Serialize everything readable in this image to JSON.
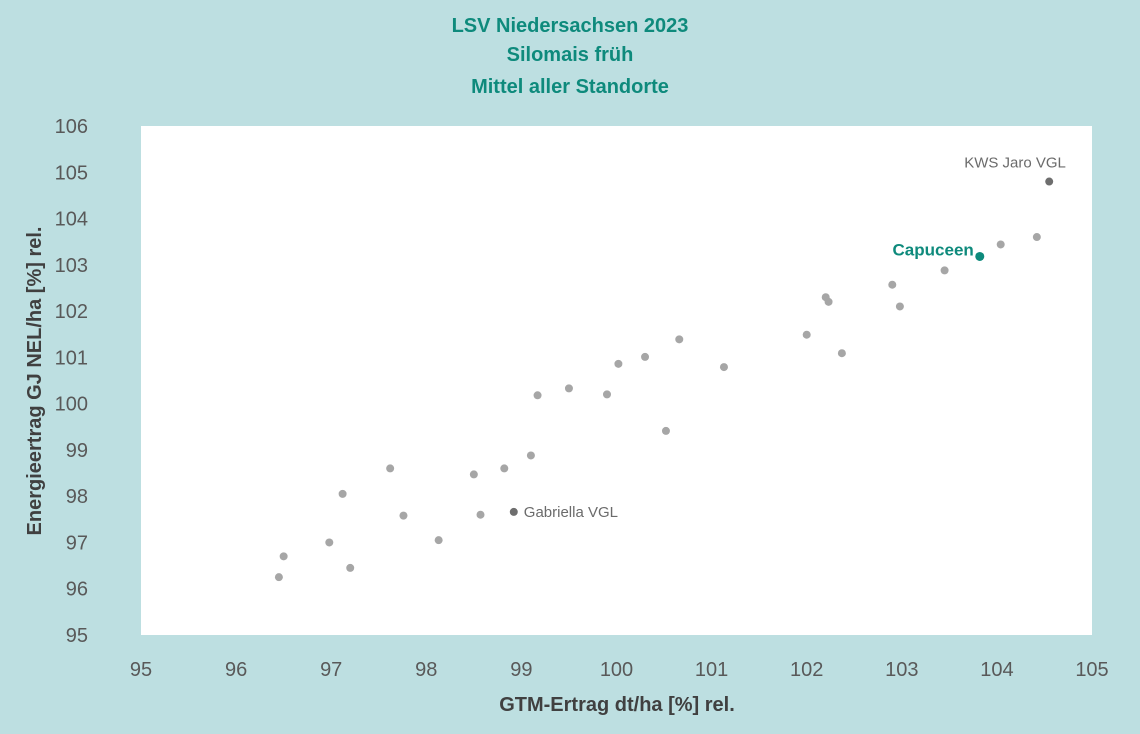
{
  "chart_data": {
    "type": "scatter",
    "title_lines": [
      "LSV Niedersachsen 2023",
      "Silomais früh",
      "Mittel aller Standorte"
    ],
    "xlabel": "GTM-Ertrag dt/ha [%] rel.",
    "ylabel": "Energieertrag GJ NEL/ha [%] rel.",
    "xlim": [
      95,
      105
    ],
    "ylim": [
      95,
      106
    ],
    "x_ticks": [
      "95",
      "96",
      "97",
      "98",
      "99",
      "100",
      "101",
      "102",
      "103",
      "104",
      "105"
    ],
    "y_ticks": [
      "95",
      "96",
      "97",
      "98",
      "99",
      "100",
      "101",
      "102",
      "103",
      "104",
      "105",
      "106"
    ],
    "colors": {
      "background": "#bddfe1",
      "plot_area": "#ffffff",
      "point": "#a6a6a6",
      "reference": "#6e6e6e",
      "highlight": "#0e8a7c",
      "title": "#0e8a7c"
    },
    "points": [
      {
        "x": 96.45,
        "y": 96.25
      },
      {
        "x": 96.5,
        "y": 96.7
      },
      {
        "x": 96.98,
        "y": 97.0
      },
      {
        "x": 97.12,
        "y": 98.05
      },
      {
        "x": 97.2,
        "y": 96.45
      },
      {
        "x": 97.62,
        "y": 98.6
      },
      {
        "x": 97.76,
        "y": 97.58
      },
      {
        "x": 98.13,
        "y": 97.05
      },
      {
        "x": 98.5,
        "y": 98.47
      },
      {
        "x": 98.57,
        "y": 97.6
      },
      {
        "x": 98.82,
        "y": 98.6
      },
      {
        "x": 99.1,
        "y": 98.88
      },
      {
        "x": 99.17,
        "y": 100.18
      },
      {
        "x": 99.5,
        "y": 100.33
      },
      {
        "x": 99.9,
        "y": 100.2
      },
      {
        "x": 100.02,
        "y": 100.86
      },
      {
        "x": 100.3,
        "y": 101.01
      },
      {
        "x": 100.52,
        "y": 99.41
      },
      {
        "x": 100.66,
        "y": 101.39
      },
      {
        "x": 101.13,
        "y": 100.79
      },
      {
        "x": 102.0,
        "y": 101.49
      },
      {
        "x": 102.2,
        "y": 102.3
      },
      {
        "x": 102.23,
        "y": 102.2
      },
      {
        "x": 102.37,
        "y": 101.09
      },
      {
        "x": 102.9,
        "y": 102.57
      },
      {
        "x": 102.98,
        "y": 102.1
      },
      {
        "x": 103.45,
        "y": 102.88
      },
      {
        "x": 104.04,
        "y": 103.44
      },
      {
        "x": 104.42,
        "y": 103.6
      }
    ],
    "reference_points": [
      {
        "name": "Gabriella VGL",
        "x": 98.92,
        "y": 97.66
      },
      {
        "name": "KWS Jaro VGL",
        "x": 104.55,
        "y": 104.8
      }
    ],
    "highlight_point": {
      "name": "Capuceen",
      "x": 103.82,
      "y": 103.18
    }
  }
}
